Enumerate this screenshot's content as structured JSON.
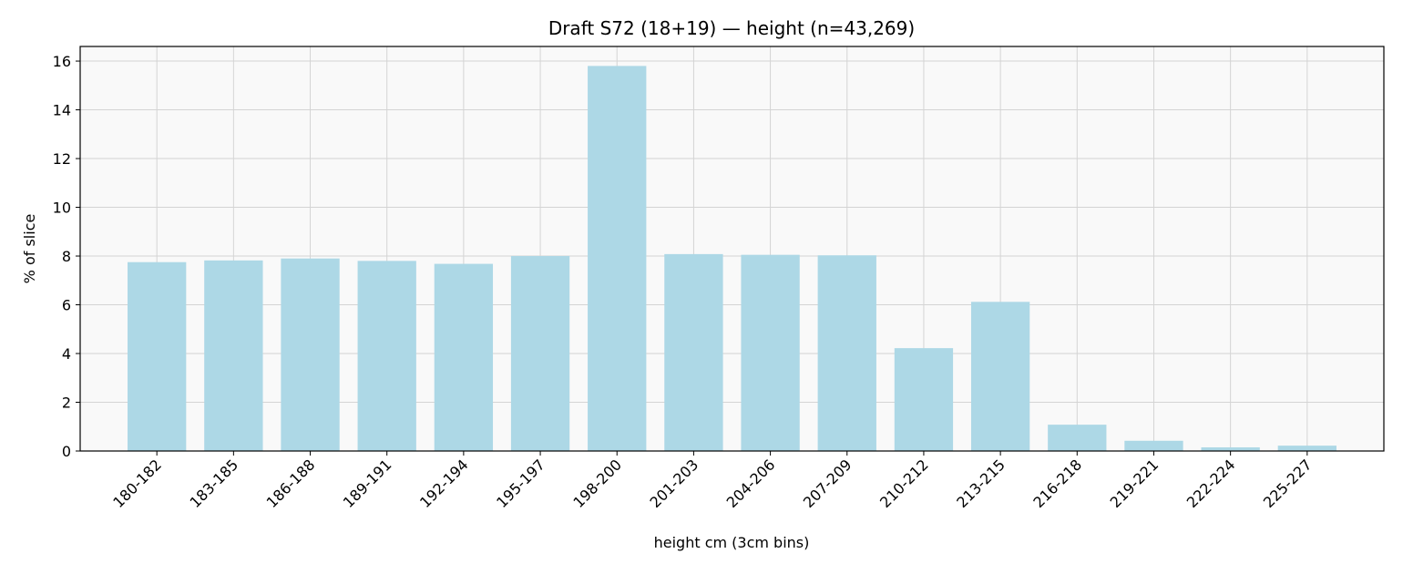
{
  "chart_data": {
    "type": "bar",
    "title": "Draft S72 (18+19) — height (n=43,269)",
    "xlabel": "height cm (3cm bins)",
    "ylabel": "% of slice",
    "categories": [
      "180-182",
      "183-185",
      "186-188",
      "189-191",
      "192-194",
      "195-197",
      "198-200",
      "201-203",
      "204-206",
      "207-209",
      "210-212",
      "213-215",
      "216-218",
      "219-221",
      "222-224",
      "225-227"
    ],
    "values": [
      7.75,
      7.82,
      7.9,
      7.8,
      7.68,
      8.0,
      15.8,
      8.08,
      8.05,
      8.03,
      4.22,
      6.12,
      1.08,
      0.42,
      0.15,
      0.22
    ],
    "ylim": [
      0,
      16.6
    ],
    "yticks": [
      0,
      2,
      4,
      6,
      8,
      10,
      12,
      14,
      16
    ],
    "grid": true,
    "bar_color": "#add8e6",
    "plot_background": "#f9f9f9"
  }
}
